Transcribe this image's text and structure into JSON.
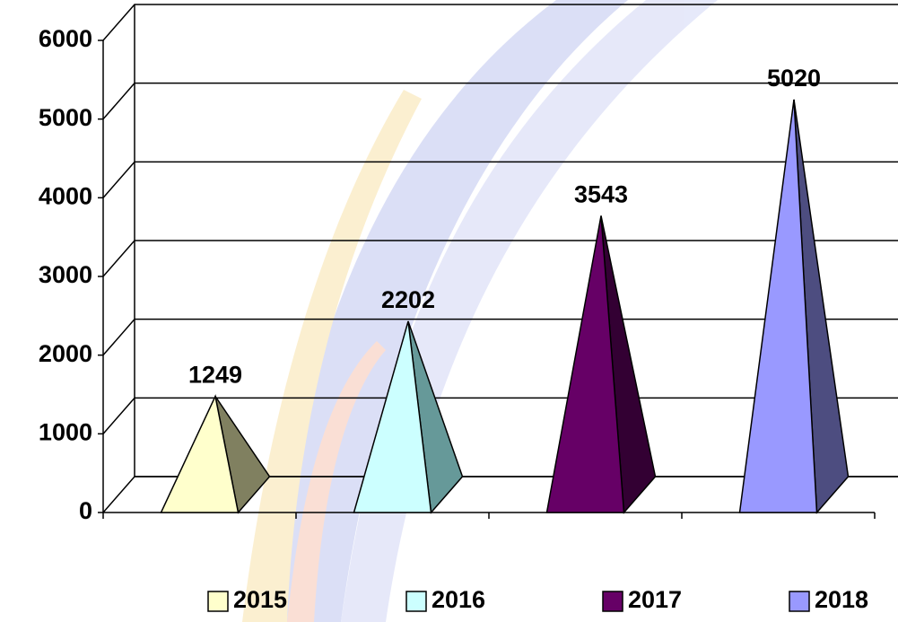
{
  "chart_data": {
    "type": "pyramid",
    "categories": [
      "2015",
      "2016",
      "2017",
      "2018"
    ],
    "values": [
      1249,
      2202,
      3543,
      5020
    ],
    "colors": [
      "#ffffcc",
      "#ccffff",
      "#660066",
      "#9999ff"
    ],
    "side_colors": [
      "#808060",
      "#669999",
      "#330033",
      "#4d4d80"
    ],
    "ylim": [
      0,
      6000
    ],
    "yticks": [
      0,
      1000,
      2000,
      3000,
      4000,
      5000,
      6000
    ],
    "grid": true,
    "legend": "bottom"
  }
}
